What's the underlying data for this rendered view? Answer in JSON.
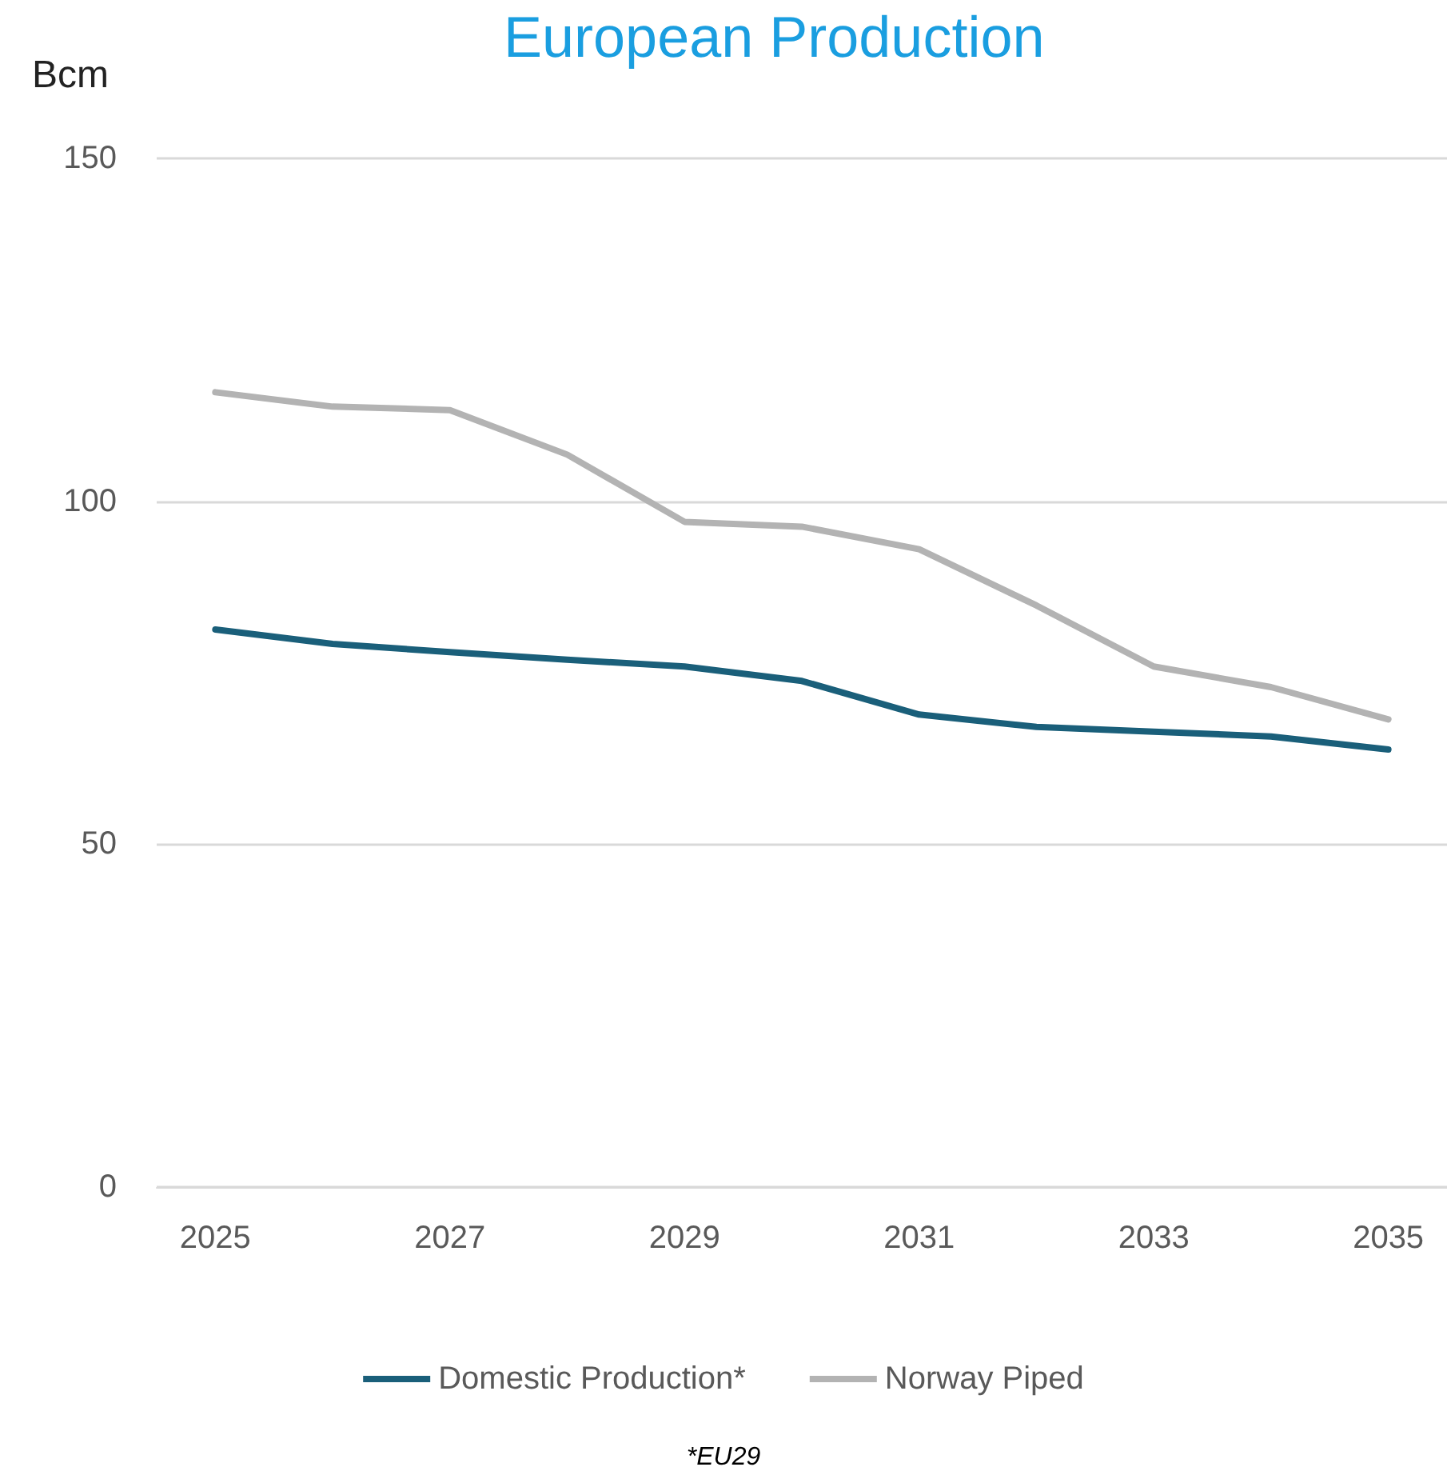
{
  "chart_data": {
    "type": "line",
    "title": "European Production",
    "ylabel": "Bcm",
    "categories": [
      "2025",
      null,
      "2027",
      null,
      "2029",
      null,
      "2031",
      null,
      "2033",
      null,
      "2035"
    ],
    "series": [
      {
        "name": "Domestic Production*",
        "color": "#1a5f7a",
        "values": [
          81.3,
          79.2,
          78.0,
          76.9,
          75.9,
          73.8,
          68.9,
          67.1,
          66.4,
          65.7,
          63.8
        ]
      },
      {
        "name": "Norway Piped",
        "color": "#b3b3b3",
        "values": [
          115.9,
          113.8,
          113.3,
          106.8,
          97.0,
          96.3,
          93.0,
          84.8,
          75.9,
          72.9,
          68.2
        ]
      }
    ],
    "ylim": [
      0,
      150
    ],
    "yticks": [
      0,
      50,
      100,
      150
    ],
    "grid": "y",
    "legend": "bottom",
    "marker": "none",
    "line_style": "solid",
    "annotations": [
      "*EU29"
    ]
  }
}
